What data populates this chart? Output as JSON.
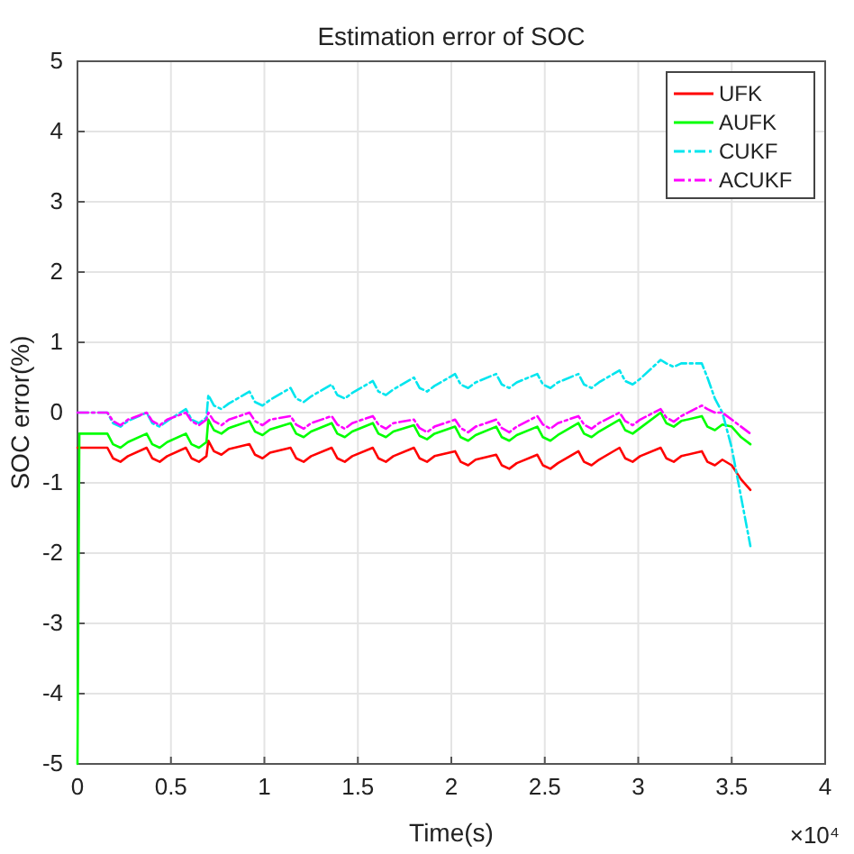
{
  "chart_data": {
    "type": "line",
    "title": "Estimation error of SOC",
    "xlabel": "Time(s)",
    "ylabel": "SOC error(%)",
    "annotations": [
      "×10⁴"
    ],
    "xlim": [
      0,
      4
    ],
    "xticks": [
      0,
      0.5,
      1,
      1.5,
      2,
      2.5,
      3,
      3.5,
      4
    ],
    "ylim": [
      -5,
      5
    ],
    "yticks": [
      -5,
      -4,
      -3,
      -2,
      -1,
      0,
      1,
      2,
      3,
      4,
      5
    ],
    "grid": true,
    "legend": "top right",
    "x": [
      0,
      0.01,
      0.16,
      0.19,
      0.23,
      0.27,
      0.37,
      0.4,
      0.44,
      0.48,
      0.58,
      0.61,
      0.65,
      0.69,
      0.7,
      0.73,
      0.77,
      0.81,
      0.92,
      0.95,
      0.99,
      1.03,
      1.14,
      1.17,
      1.21,
      1.25,
      1.36,
      1.39,
      1.43,
      1.47,
      1.58,
      1.61,
      1.65,
      1.69,
      1.8,
      1.83,
      1.87,
      1.91,
      2.02,
      2.05,
      2.09,
      2.13,
      2.24,
      2.27,
      2.31,
      2.35,
      2.46,
      2.49,
      2.53,
      2.57,
      2.68,
      2.71,
      2.75,
      2.79,
      2.9,
      2.93,
      2.97,
      3.01,
      3.12,
      3.15,
      3.19,
      3.23,
      3.34,
      3.37,
      3.41,
      3.45,
      3.5,
      3.55,
      3.6
    ],
    "series": [
      {
        "name": "UFK",
        "color": "#ff0000",
        "line_style": "solid",
        "values": [
          -0.5,
          -0.5,
          -0.5,
          -0.65,
          -0.7,
          -0.62,
          -0.5,
          -0.65,
          -0.7,
          -0.62,
          -0.5,
          -0.65,
          -0.7,
          -0.62,
          -0.4,
          -0.55,
          -0.6,
          -0.52,
          -0.45,
          -0.6,
          -0.65,
          -0.57,
          -0.5,
          -0.65,
          -0.7,
          -0.62,
          -0.5,
          -0.65,
          -0.7,
          -0.62,
          -0.5,
          -0.65,
          -0.7,
          -0.62,
          -0.5,
          -0.65,
          -0.7,
          -0.62,
          -0.55,
          -0.7,
          -0.75,
          -0.67,
          -0.6,
          -0.75,
          -0.8,
          -0.72,
          -0.6,
          -0.75,
          -0.8,
          -0.72,
          -0.55,
          -0.7,
          -0.75,
          -0.67,
          -0.5,
          -0.65,
          -0.7,
          -0.62,
          -0.5,
          -0.65,
          -0.7,
          -0.62,
          -0.55,
          -0.7,
          -0.75,
          -0.67,
          -0.75,
          -0.95,
          -1.1
        ]
      },
      {
        "name": "AUFK",
        "color": "#00ff00",
        "line_style": "solid",
        "values": [
          -5,
          -0.3,
          -0.3,
          -0.45,
          -0.5,
          -0.42,
          -0.3,
          -0.45,
          -0.5,
          -0.42,
          -0.3,
          -0.45,
          -0.5,
          -0.42,
          -0.1,
          -0.25,
          -0.3,
          -0.22,
          -0.12,
          -0.27,
          -0.32,
          -0.24,
          -0.15,
          -0.3,
          -0.35,
          -0.27,
          -0.15,
          -0.3,
          -0.35,
          -0.27,
          -0.15,
          -0.3,
          -0.35,
          -0.27,
          -0.18,
          -0.33,
          -0.38,
          -0.3,
          -0.2,
          -0.35,
          -0.4,
          -0.32,
          -0.2,
          -0.35,
          -0.4,
          -0.32,
          -0.2,
          -0.35,
          -0.4,
          -0.32,
          -0.15,
          -0.3,
          -0.35,
          -0.27,
          -0.1,
          -0.25,
          -0.3,
          -0.22,
          0,
          -0.15,
          -0.2,
          -0.12,
          -0.05,
          -0.2,
          -0.25,
          -0.17,
          -0.2,
          -0.35,
          -0.45
        ]
      },
      {
        "name": "CUKF",
        "color": "#00e5ee",
        "line_style": "dashed",
        "values": [
          0,
          0,
          0,
          -0.15,
          -0.2,
          -0.12,
          0,
          -0.15,
          -0.2,
          -0.12,
          0.05,
          -0.1,
          -0.15,
          -0.07,
          0.25,
          0.1,
          0.05,
          0.13,
          0.3,
          0.15,
          0.1,
          0.18,
          0.35,
          0.2,
          0.15,
          0.23,
          0.4,
          0.25,
          0.2,
          0.28,
          0.45,
          0.3,
          0.25,
          0.33,
          0.5,
          0.35,
          0.3,
          0.38,
          0.55,
          0.4,
          0.35,
          0.43,
          0.55,
          0.4,
          0.35,
          0.43,
          0.55,
          0.4,
          0.35,
          0.43,
          0.55,
          0.4,
          0.35,
          0.43,
          0.6,
          0.45,
          0.4,
          0.48,
          0.75,
          0.7,
          0.65,
          0.7,
          0.7,
          0.5,
          0.2,
          0,
          -0.5,
          -1.2,
          -1.9
        ]
      },
      {
        "name": "ACUKF",
        "color": "#ff00ff",
        "line_style": "dashed",
        "values": [
          0,
          0,
          0,
          -0.12,
          -0.18,
          -0.1,
          0,
          -0.12,
          -0.18,
          -0.1,
          0,
          -0.12,
          -0.18,
          -0.1,
          0,
          -0.12,
          -0.18,
          -0.1,
          0,
          -0.12,
          -0.18,
          -0.1,
          -0.05,
          -0.17,
          -0.23,
          -0.15,
          -0.05,
          -0.17,
          -0.23,
          -0.15,
          -0.05,
          -0.17,
          -0.23,
          -0.15,
          -0.1,
          -0.22,
          -0.28,
          -0.2,
          -0.1,
          -0.22,
          -0.28,
          -0.2,
          -0.1,
          -0.22,
          -0.28,
          -0.2,
          -0.05,
          -0.17,
          -0.23,
          -0.15,
          -0.05,
          -0.17,
          -0.23,
          -0.15,
          0,
          -0.12,
          -0.18,
          -0.1,
          0.05,
          -0.07,
          -0.13,
          -0.05,
          0.1,
          0.05,
          0,
          0,
          -0.1,
          -0.2,
          -0.3
        ]
      }
    ]
  }
}
